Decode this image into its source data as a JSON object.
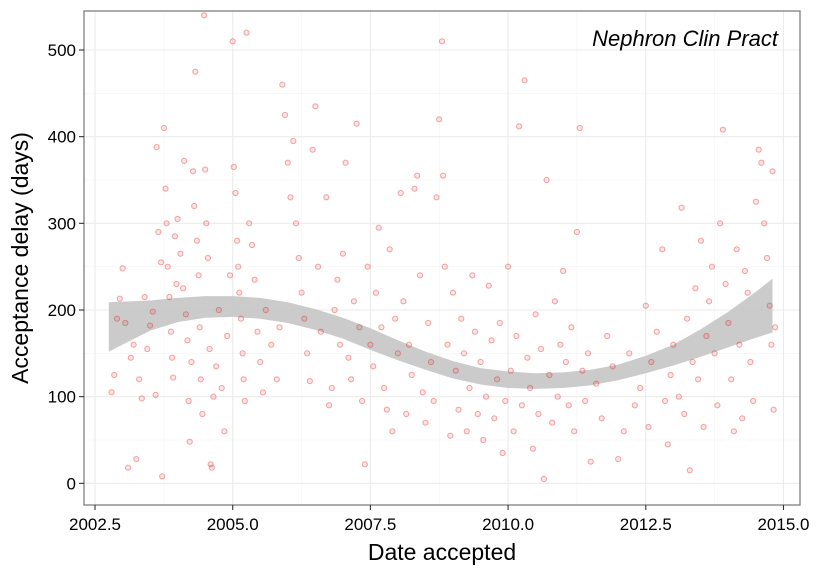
{
  "chart_data": {
    "type": "scatter",
    "annotation": "Nephron Clin Pract",
    "xlabel": "Date accepted",
    "ylabel": "Acceptance delay (days)",
    "xlim": [
      2002.3,
      2015.3
    ],
    "ylim": [
      -25,
      545
    ],
    "x_ticks": [
      "2002.5",
      "2005.0",
      "2007.5",
      "2010.0",
      "2012.5",
      "2015.0"
    ],
    "y_ticks": [
      "0",
      "100",
      "200",
      "300",
      "400",
      "500"
    ],
    "grid": true,
    "colors": {
      "points": "#e41a1c",
      "band": "#c8c8c8",
      "panel_border": "#7f7f7f"
    },
    "smooth_band": [
      {
        "x": 2002.75,
        "lower": 152,
        "upper": 209
      },
      {
        "x": 2003.5,
        "lower": 176,
        "upper": 211
      },
      {
        "x": 2004.0,
        "lower": 186,
        "upper": 214
      },
      {
        "x": 2004.5,
        "lower": 191,
        "upper": 216
      },
      {
        "x": 2005.0,
        "lower": 192,
        "upper": 216
      },
      {
        "x": 2005.5,
        "lower": 190,
        "upper": 214
      },
      {
        "x": 2006.0,
        "lower": 185,
        "upper": 209
      },
      {
        "x": 2006.5,
        "lower": 177,
        "upper": 201
      },
      {
        "x": 2007.0,
        "lower": 167,
        "upper": 191
      },
      {
        "x": 2007.5,
        "lower": 154,
        "upper": 179
      },
      {
        "x": 2008.0,
        "lower": 142,
        "upper": 165
      },
      {
        "x": 2008.5,
        "lower": 131,
        "upper": 152
      },
      {
        "x": 2009.0,
        "lower": 121,
        "upper": 141
      },
      {
        "x": 2009.5,
        "lower": 114,
        "upper": 133
      },
      {
        "x": 2010.0,
        "lower": 110,
        "upper": 129
      },
      {
        "x": 2010.5,
        "lower": 109,
        "upper": 127
      },
      {
        "x": 2011.0,
        "lower": 110,
        "upper": 128
      },
      {
        "x": 2011.5,
        "lower": 113,
        "upper": 131
      },
      {
        "x": 2012.0,
        "lower": 119,
        "upper": 137
      },
      {
        "x": 2012.5,
        "lower": 127,
        "upper": 147
      },
      {
        "x": 2013.0,
        "lower": 136,
        "upper": 160
      },
      {
        "x": 2013.5,
        "lower": 146,
        "upper": 178
      },
      {
        "x": 2014.0,
        "lower": 157,
        "upper": 198
      },
      {
        "x": 2014.5,
        "lower": 168,
        "upper": 221
      },
      {
        "x": 2014.8,
        "lower": 174,
        "upper": 236
      }
    ],
    "points": [
      [
        2002.8,
        105
      ],
      [
        2002.85,
        125
      ],
      [
        2002.9,
        190
      ],
      [
        2002.95,
        213
      ],
      [
        2003.0,
        248
      ],
      [
        2003.05,
        185
      ],
      [
        2003.1,
        18
      ],
      [
        2003.15,
        145
      ],
      [
        2003.2,
        160
      ],
      [
        2003.25,
        28
      ],
      [
        2003.3,
        120
      ],
      [
        2003.35,
        98
      ],
      [
        2003.4,
        215
      ],
      [
        2003.45,
        155
      ],
      [
        2003.5,
        182
      ],
      [
        2003.55,
        198
      ],
      [
        2003.6,
        102
      ],
      [
        2003.62,
        388
      ],
      [
        2003.65,
        290
      ],
      [
        2003.7,
        255
      ],
      [
        2003.72,
        8
      ],
      [
        2003.75,
        410
      ],
      [
        2003.78,
        340
      ],
      [
        2003.8,
        300
      ],
      [
        2003.82,
        250
      ],
      [
        2003.85,
        215
      ],
      [
        2003.88,
        175
      ],
      [
        2003.9,
        145
      ],
      [
        2003.92,
        122
      ],
      [
        2003.95,
        285
      ],
      [
        2003.98,
        230
      ],
      [
        2004.0,
        305
      ],
      [
        2004.05,
        265
      ],
      [
        2004.1,
        225
      ],
      [
        2004.12,
        372
      ],
      [
        2004.15,
        195
      ],
      [
        2004.18,
        165
      ],
      [
        2004.2,
        95
      ],
      [
        2004.22,
        48
      ],
      [
        2004.25,
        140
      ],
      [
        2004.28,
        360
      ],
      [
        2004.3,
        320
      ],
      [
        2004.32,
        475
      ],
      [
        2004.35,
        280
      ],
      [
        2004.38,
        240
      ],
      [
        2004.4,
        180
      ],
      [
        2004.42,
        120
      ],
      [
        2004.45,
        80
      ],
      [
        2004.48,
        540
      ],
      [
        2004.5,
        362
      ],
      [
        2004.52,
        300
      ],
      [
        2004.55,
        260
      ],
      [
        2004.58,
        155
      ],
      [
        2004.6,
        22
      ],
      [
        2004.62,
        18
      ],
      [
        2004.65,
        100
      ],
      [
        2004.7,
        135
      ],
      [
        2004.75,
        200
      ],
      [
        2004.8,
        110
      ],
      [
        2004.85,
        60
      ],
      [
        2004.9,
        170
      ],
      [
        2004.95,
        240
      ],
      [
        2005.0,
        510
      ],
      [
        2005.02,
        365
      ],
      [
        2005.05,
        335
      ],
      [
        2005.08,
        280
      ],
      [
        2005.1,
        250
      ],
      [
        2005.12,
        220
      ],
      [
        2005.15,
        190
      ],
      [
        2005.18,
        150
      ],
      [
        2005.2,
        120
      ],
      [
        2005.22,
        95
      ],
      [
        2005.25,
        520
      ],
      [
        2005.3,
        300
      ],
      [
        2005.35,
        275
      ],
      [
        2005.4,
        235
      ],
      [
        2005.45,
        175
      ],
      [
        2005.5,
        140
      ],
      [
        2005.55,
        105
      ],
      [
        2005.6,
        200
      ],
      [
        2005.7,
        160
      ],
      [
        2005.8,
        120
      ],
      [
        2005.85,
        180
      ],
      [
        2005.9,
        460
      ],
      [
        2005.95,
        425
      ],
      [
        2006.0,
        370
      ],
      [
        2006.05,
        330
      ],
      [
        2006.1,
        395
      ],
      [
        2006.15,
        300
      ],
      [
        2006.2,
        260
      ],
      [
        2006.25,
        220
      ],
      [
        2006.3,
        190
      ],
      [
        2006.35,
        150
      ],
      [
        2006.4,
        118
      ],
      [
        2006.45,
        385
      ],
      [
        2006.5,
        435
      ],
      [
        2006.55,
        250
      ],
      [
        2006.6,
        175
      ],
      [
        2006.7,
        330
      ],
      [
        2006.75,
        90
      ],
      [
        2006.8,
        110
      ],
      [
        2006.85,
        200
      ],
      [
        2006.9,
        235
      ],
      [
        2006.95,
        160
      ],
      [
        2007.0,
        265
      ],
      [
        2007.05,
        370
      ],
      [
        2007.1,
        145
      ],
      [
        2007.15,
        120
      ],
      [
        2007.2,
        210
      ],
      [
        2007.25,
        415
      ],
      [
        2007.3,
        180
      ],
      [
        2007.35,
        95
      ],
      [
        2007.4,
        22
      ],
      [
        2007.45,
        250
      ],
      [
        2007.5,
        160
      ],
      [
        2007.55,
        135
      ],
      [
        2007.6,
        220
      ],
      [
        2007.65,
        295
      ],
      [
        2007.7,
        180
      ],
      [
        2007.75,
        110
      ],
      [
        2007.8,
        85
      ],
      [
        2007.85,
        270
      ],
      [
        2007.9,
        60
      ],
      [
        2007.95,
        190
      ],
      [
        2008.0,
        150
      ],
      [
        2008.05,
        335
      ],
      [
        2008.1,
        210
      ],
      [
        2008.15,
        80
      ],
      [
        2008.2,
        160
      ],
      [
        2008.25,
        125
      ],
      [
        2008.3,
        340
      ],
      [
        2008.35,
        355
      ],
      [
        2008.4,
        240
      ],
      [
        2008.45,
        105
      ],
      [
        2008.5,
        70
      ],
      [
        2008.55,
        185
      ],
      [
        2008.6,
        140
      ],
      [
        2008.65,
        95
      ],
      [
        2008.7,
        330
      ],
      [
        2008.75,
        420
      ],
      [
        2008.8,
        510
      ],
      [
        2008.82,
        355
      ],
      [
        2008.85,
        250
      ],
      [
        2008.9,
        160
      ],
      [
        2008.95,
        55
      ],
      [
        2009.0,
        220
      ],
      [
        2009.05,
        130
      ],
      [
        2009.1,
        85
      ],
      [
        2009.15,
        190
      ],
      [
        2009.2,
        150
      ],
      [
        2009.25,
        60
      ],
      [
        2009.3,
        110
      ],
      [
        2009.35,
        240
      ],
      [
        2009.4,
        175
      ],
      [
        2009.45,
        80
      ],
      [
        2009.5,
        140
      ],
      [
        2009.55,
        50
      ],
      [
        2009.6,
        100
      ],
      [
        2009.65,
        228
      ],
      [
        2009.7,
        165
      ],
      [
        2009.75,
        75
      ],
      [
        2009.8,
        120
      ],
      [
        2009.85,
        185
      ],
      [
        2009.9,
        35
      ],
      [
        2009.95,
        95
      ],
      [
        2010.0,
        250
      ],
      [
        2010.05,
        130
      ],
      [
        2010.1,
        60
      ],
      [
        2010.15,
        170
      ],
      [
        2010.2,
        412
      ],
      [
        2010.25,
        90
      ],
      [
        2010.3,
        465
      ],
      [
        2010.35,
        145
      ],
      [
        2010.4,
        110
      ],
      [
        2010.45,
        40
      ],
      [
        2010.5,
        195
      ],
      [
        2010.55,
        80
      ],
      [
        2010.6,
        155
      ],
      [
        2010.65,
        5
      ],
      [
        2010.7,
        350
      ],
      [
        2010.75,
        125
      ],
      [
        2010.8,
        70
      ],
      [
        2010.85,
        210
      ],
      [
        2010.9,
        100
      ],
      [
        2010.95,
        160
      ],
      [
        2011.0,
        245
      ],
      [
        2011.05,
        140
      ],
      [
        2011.1,
        90
      ],
      [
        2011.15,
        180
      ],
      [
        2011.2,
        60
      ],
      [
        2011.25,
        290
      ],
      [
        2011.3,
        410
      ],
      [
        2011.35,
        130
      ],
      [
        2011.4,
        95
      ],
      [
        2011.45,
        150
      ],
      [
        2011.5,
        25
      ],
      [
        2011.6,
        115
      ],
      [
        2011.7,
        75
      ],
      [
        2011.8,
        170
      ],
      [
        2011.9,
        135
      ],
      [
        2012.0,
        28
      ],
      [
        2012.1,
        60
      ],
      [
        2012.2,
        150
      ],
      [
        2012.3,
        90
      ],
      [
        2012.4,
        110
      ],
      [
        2012.5,
        205
      ],
      [
        2012.55,
        65
      ],
      [
        2012.6,
        140
      ],
      [
        2012.7,
        175
      ],
      [
        2012.8,
        270
      ],
      [
        2012.85,
        95
      ],
      [
        2012.9,
        45
      ],
      [
        2012.95,
        125
      ],
      [
        2013.0,
        160
      ],
      [
        2013.1,
        100
      ],
      [
        2013.15,
        318
      ],
      [
        2013.2,
        80
      ],
      [
        2013.25,
        190
      ],
      [
        2013.3,
        15
      ],
      [
        2013.35,
        140
      ],
      [
        2013.4,
        225
      ],
      [
        2013.45,
        120
      ],
      [
        2013.5,
        280
      ],
      [
        2013.55,
        65
      ],
      [
        2013.6,
        170
      ],
      [
        2013.65,
        210
      ],
      [
        2013.7,
        250
      ],
      [
        2013.75,
        150
      ],
      [
        2013.8,
        90
      ],
      [
        2013.85,
        300
      ],
      [
        2013.9,
        408
      ],
      [
        2013.95,
        230
      ],
      [
        2014.0,
        185
      ],
      [
        2014.05,
        120
      ],
      [
        2014.1,
        60
      ],
      [
        2014.15,
        270
      ],
      [
        2014.2,
        160
      ],
      [
        2014.25,
        75
      ],
      [
        2014.3,
        245
      ],
      [
        2014.35,
        220
      ],
      [
        2014.4,
        140
      ],
      [
        2014.45,
        95
      ],
      [
        2014.5,
        325
      ],
      [
        2014.55,
        385
      ],
      [
        2014.6,
        370
      ],
      [
        2014.65,
        300
      ],
      [
        2014.7,
        260
      ],
      [
        2014.75,
        205
      ],
      [
        2014.78,
        160
      ],
      [
        2014.8,
        360
      ],
      [
        2014.82,
        85
      ],
      [
        2014.85,
        180
      ]
    ]
  }
}
